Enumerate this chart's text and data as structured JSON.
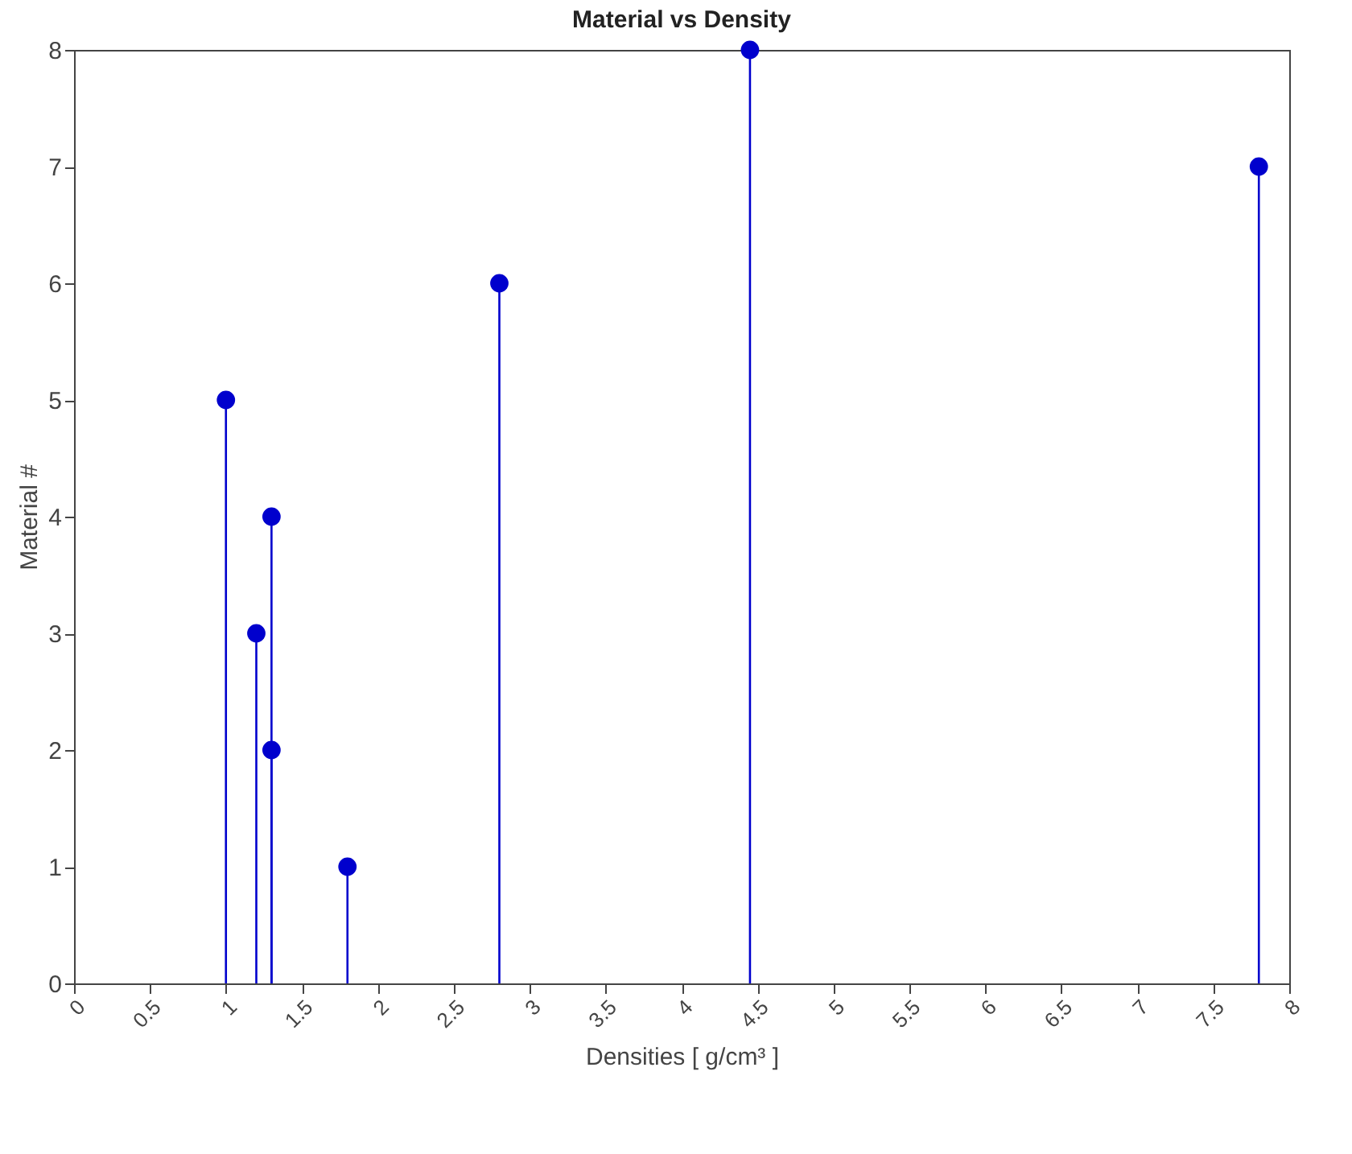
{
  "chart_data": {
    "type": "lollipop",
    "title": "Material vs Density",
    "xlabel": "Densities   [ g/cm³ ]",
    "ylabel": "Material #",
    "x": [
      1.8,
      1.3,
      1.2,
      1.3,
      1.0,
      2.8,
      7.8,
      4.45
    ],
    "series": [
      {
        "color": "#0000cd",
        "values": [
          1,
          2,
          3,
          4,
          5,
          6,
          7,
          8
        ]
      }
    ],
    "xlim": [
      0,
      8
    ],
    "xticks": [
      0,
      0.5,
      1,
      1.5,
      2,
      2.5,
      3,
      3.5,
      4,
      4.5,
      5,
      5.5,
      6,
      6.5,
      7,
      7.5,
      8
    ],
    "ylim": [
      0,
      8
    ],
    "yticks": [
      0,
      1,
      2,
      3,
      4,
      5,
      6,
      7,
      8
    ],
    "grid": false,
    "marker": "circle"
  }
}
